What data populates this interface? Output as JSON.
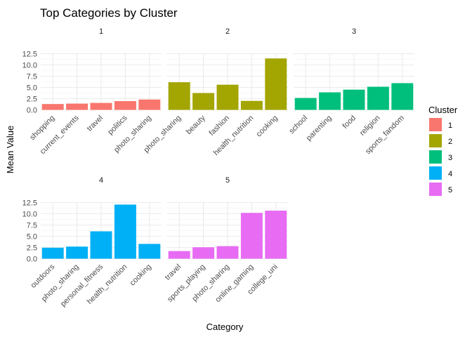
{
  "colors": {
    "1": "#F8766D",
    "2": "#A3A500",
    "3": "#00BF7D",
    "4": "#00B0F6",
    "5": "#E76BF3"
  },
  "chart_data": {
    "type": "bar",
    "title": "Top Categories by Cluster",
    "xlabel": "Category",
    "ylabel": "Mean Value",
    "ylim": [
      0,
      12.5
    ],
    "yticks": [
      "0.0",
      "2.5",
      "5.0",
      "7.5",
      "10.0",
      "12.5"
    ],
    "grid": true,
    "legend": {
      "title": "Cluster",
      "position": "right",
      "entries": [
        "1",
        "2",
        "3",
        "4",
        "5"
      ]
    },
    "facets": [
      {
        "label": "1",
        "cluster": "1",
        "categories": [
          "shopping",
          "current_events",
          "travel",
          "politics",
          "photo_sharing"
        ],
        "values": [
          1.3,
          1.4,
          1.55,
          1.95,
          2.3
        ]
      },
      {
        "label": "2",
        "cluster": "2",
        "categories": [
          "photo_sharing",
          "beauty",
          "fashion",
          "health_nutrition",
          "cooking"
        ],
        "values": [
          6.15,
          3.75,
          5.6,
          2.0,
          11.45
        ]
      },
      {
        "label": "3",
        "cluster": "3",
        "categories": [
          "school",
          "parenting",
          "food",
          "religion",
          "sports_fandom"
        ],
        "values": [
          2.65,
          3.9,
          4.5,
          5.15,
          5.95
        ]
      },
      {
        "label": "4",
        "cluster": "4",
        "categories": [
          "outdoors",
          "photo_sharing",
          "personal_fitness",
          "health_nutrition",
          "cooking"
        ],
        "values": [
          2.45,
          2.7,
          6.1,
          12.05,
          3.3
        ]
      },
      {
        "label": "5",
        "cluster": "5",
        "categories": [
          "travel",
          "sports_playing",
          "photo_sharing",
          "online_gaming",
          "college_uni"
        ],
        "values": [
          1.7,
          2.55,
          2.8,
          10.2,
          10.7
        ]
      }
    ]
  }
}
